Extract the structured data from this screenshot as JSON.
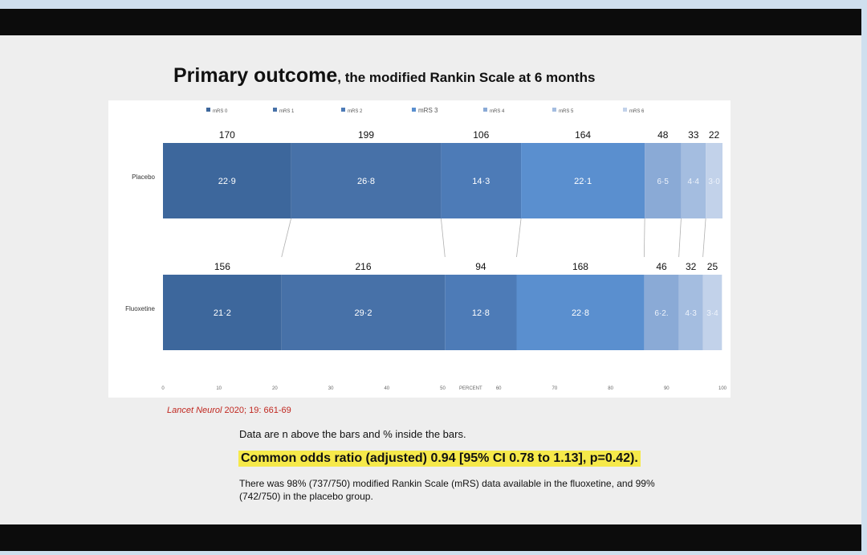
{
  "slide": {
    "title_main": "Primary outcome",
    "title_sub": ", the modified Rankin Scale at 6 months",
    "reference_journal": "Lancet Neurol",
    "reference_detail": " 2020; 19: 661-69",
    "note_data": "Data are n above the bars and % inside the bars.",
    "note_odds_ratio": "Common odds ratio (adjusted) 0.94 [95% CI 0.78 to 1.13], p=0.42).",
    "note_availability": "There was 98% (737/750) modified Rankin Scale (mRS) data available in the fluoxetine, and 99% (742/750) in the placebo group."
  },
  "chart_data": {
    "type": "bar",
    "orientation": "horizontal",
    "stacked": true,
    "xlabel": "PERCENT",
    "xlim": [
      0,
      100
    ],
    "xticks": [
      0,
      10,
      20,
      30,
      40,
      50,
      60,
      70,
      80,
      90,
      100
    ],
    "categories": [
      "Placebo",
      "Fluoxetine"
    ],
    "series": [
      {
        "name": "mRS 0",
        "color": "#3d679c"
      },
      {
        "name": "mRS 1",
        "color": "#4771a8"
      },
      {
        "name": "mRS 2",
        "color": "#4d7bb7"
      },
      {
        "name": "mRS 3",
        "color": "#5a8fcf"
      },
      {
        "name": "mRS 4",
        "color": "#8aaad6"
      },
      {
        "name": "mRS 5",
        "color": "#a4bde0"
      },
      {
        "name": "mRS 6",
        "color": "#c2d2ea"
      }
    ],
    "groups": [
      {
        "category": "Placebo",
        "n": [
          "170",
          "199",
          "106",
          "164",
          "48",
          "33",
          "22"
        ],
        "percent_labels": [
          "22·9",
          "26·8",
          "14·3",
          "22·1",
          "6·5",
          "4·4",
          "3·0"
        ],
        "values": [
          22.9,
          26.8,
          14.3,
          22.1,
          6.5,
          4.4,
          3.0
        ]
      },
      {
        "category": "Fluoxetine",
        "n": [
          "156",
          "216",
          "94",
          "168",
          "46",
          "32",
          "25"
        ],
        "percent_labels": [
          "21·2",
          "29·2",
          "12·8",
          "22·8",
          "6·2.",
          "4·3",
          "3·4"
        ],
        "values": [
          21.2,
          29.2,
          12.8,
          22.8,
          6.2,
          4.3,
          3.4
        ]
      }
    ],
    "legend_position": "top",
    "grid": false
  }
}
